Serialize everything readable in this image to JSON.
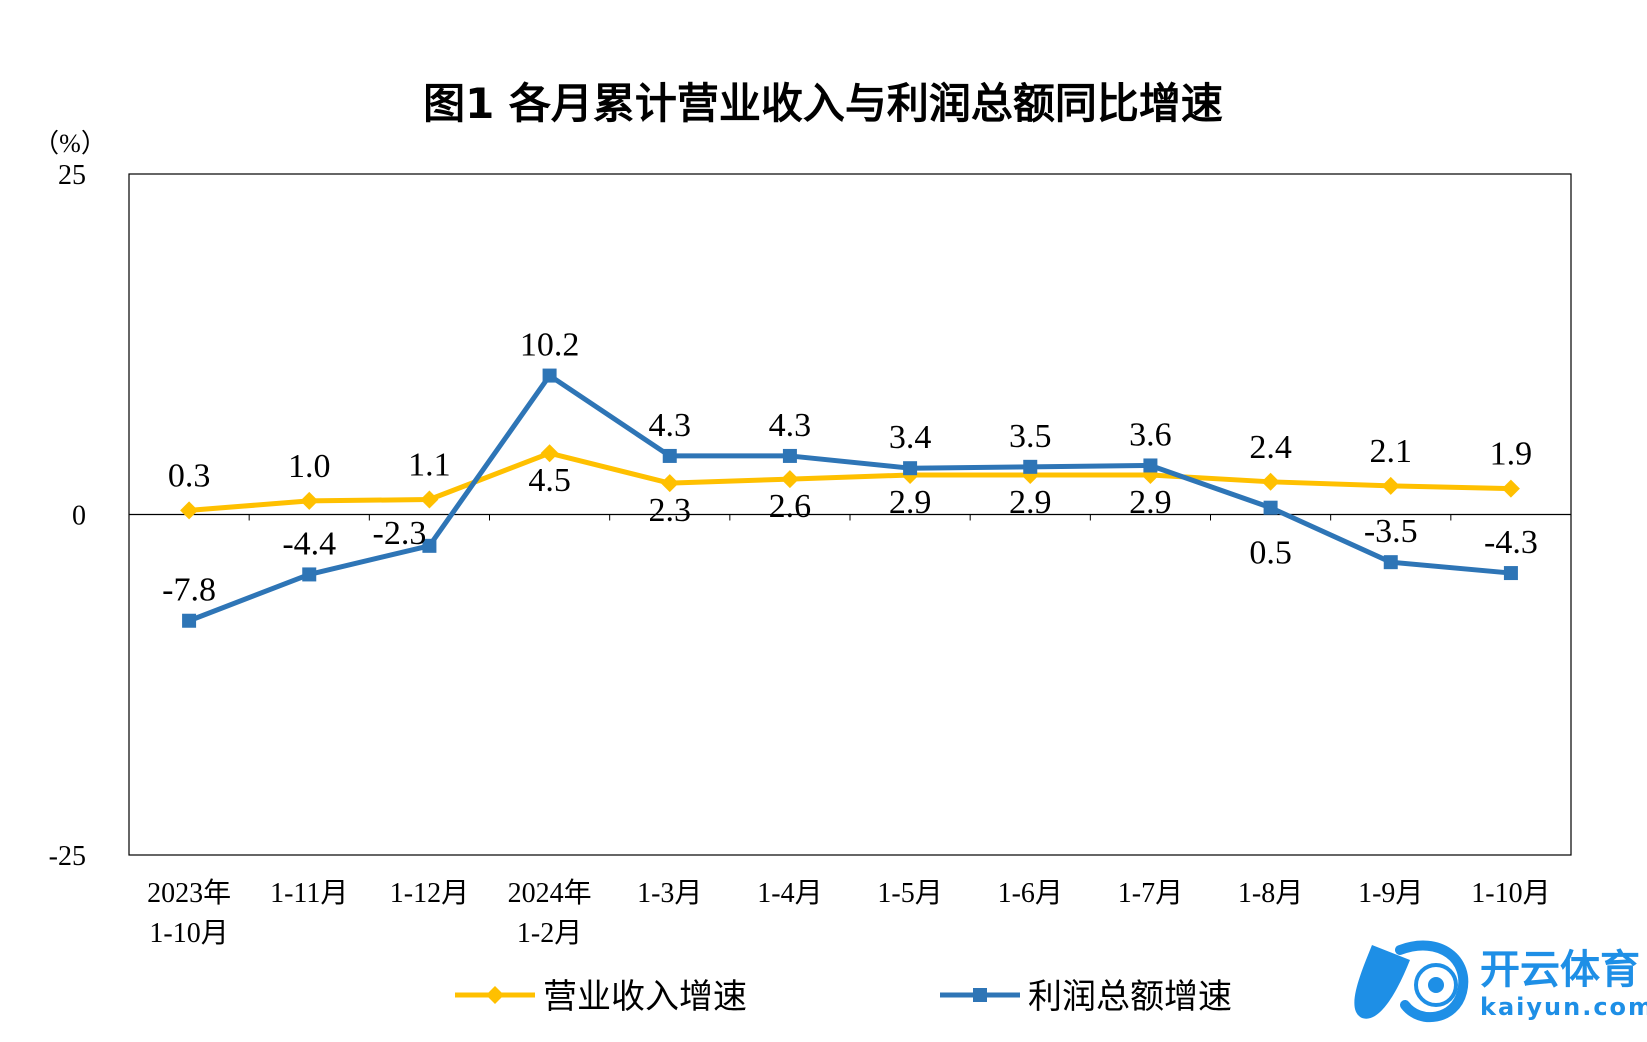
{
  "colors": {
    "revenue": "#FFC000",
    "profit": "#2E75B6",
    "axis": "#000000",
    "watermark_blue": "#1E8FE6"
  },
  "chart_data": {
    "type": "line",
    "title": "图1  各月累计营业收入与利润总额同比增速",
    "ylabel": "（%）",
    "ylim": [
      -25,
      25
    ],
    "yticks": [
      "25",
      "0",
      "-25"
    ],
    "categories": [
      [
        "2023年",
        "1-10月"
      ],
      [
        "1-11月"
      ],
      [
        "1-12月"
      ],
      [
        "2024年",
        "1-2月"
      ],
      [
        "1-3月"
      ],
      [
        "1-4月"
      ],
      [
        "1-5月"
      ],
      [
        "1-6月"
      ],
      [
        "1-7月"
      ],
      [
        "1-8月"
      ],
      [
        "1-9月"
      ],
      [
        "1-10月"
      ]
    ],
    "series": [
      {
        "name": "营业收入增速",
        "color": "#FFC000",
        "marker": "diamond",
        "values": [
          0.3,
          1.0,
          1.1,
          4.5,
          2.3,
          2.6,
          2.9,
          2.9,
          2.9,
          2.4,
          2.1,
          1.9
        ],
        "labels": [
          "0.3",
          "1.0",
          "1.1",
          "4.5",
          "2.3",
          "2.6",
          "2.9",
          "2.9",
          "2.9",
          "2.4",
          "2.1",
          "1.9"
        ]
      },
      {
        "name": "利润总额增速",
        "color": "#2E75B6",
        "marker": "square",
        "values": [
          -7.8,
          -4.4,
          -2.3,
          10.2,
          4.3,
          4.3,
          3.4,
          3.5,
          3.6,
          0.5,
          -3.5,
          -4.3
        ],
        "labels": [
          "-7.8",
          "-4.4",
          "-2.3",
          "10.2",
          "4.3",
          "4.3",
          "3.4",
          "3.5",
          "3.6",
          "0.5",
          "-3.5",
          "-4.3"
        ]
      }
    ],
    "legend": "bottom"
  },
  "watermark": {
    "cn": "开云体育",
    "en": "kaiyun.com"
  }
}
